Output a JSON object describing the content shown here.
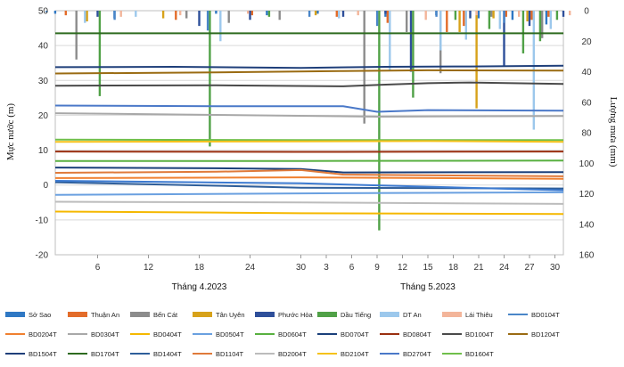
{
  "chart_data": {
    "type": "line",
    "title": "",
    "ylabel_left": "Mực nước (m)",
    "ylabel_right": "Lượng mưa (mm)",
    "ylim_left": [
      -20,
      50
    ],
    "yticks_left": [
      50,
      40,
      30,
      20,
      10,
      0,
      -10,
      -20
    ],
    "ylim_right_inverted": [
      0,
      160
    ],
    "yticks_right": [
      0,
      20,
      40,
      60,
      80,
      100,
      120,
      140,
      160
    ],
    "x_tick_labels": [
      "6",
      "12",
      "18",
      "24",
      "30",
      "3",
      "6",
      "9",
      "12",
      "15",
      "18",
      "21",
      "24",
      "27",
      "30"
    ],
    "x_tick_days": [
      6,
      12,
      18,
      24,
      30,
      33,
      36,
      39,
      42,
      45,
      48,
      51,
      54,
      57,
      60
    ],
    "x_range_days": [
      1,
      61
    ],
    "month_labels": [
      {
        "label": "Tháng 4.2023",
        "day": 18
      },
      {
        "label": "Tháng 5.2023",
        "day": 45
      }
    ],
    "legend_entries": [
      "Sở Sao",
      "Thuận An",
      "Bến Cát",
      "Tân Uyên",
      "Phước Hòa",
      "Dầu Tiếng",
      "DT An",
      "Lái Thiêu",
      "BD0104T",
      "BD0204T",
      "BD0304T",
      "BD0404T",
      "BD0504T",
      "BD0604T",
      "BD0704T",
      "BD0804T",
      "BD1004T",
      "BD1204T",
      "BD1504T",
      "BD1704T",
      "BD1404T",
      "BD1104T",
      "BD2004T",
      "BD2104T",
      "BD2704T",
      "BD1604T"
    ],
    "rain_series": [
      {
        "name": "Sở Sao",
        "color": "#2f78c4",
        "values": [
          [
            1,
            1
          ],
          [
            2,
            2
          ],
          [
            9,
            5
          ],
          [
            21,
            2
          ],
          [
            27,
            3
          ],
          [
            33,
            2
          ],
          [
            41,
            4
          ],
          [
            47,
            3
          ],
          [
            52,
            5
          ],
          [
            56,
            6
          ],
          [
            60,
            9
          ]
        ]
      },
      {
        "name": "Thuận An",
        "color": "#e36c2a",
        "values": [
          [
            3,
            3
          ],
          [
            16,
            6
          ],
          [
            25,
            3
          ],
          [
            35,
            4
          ],
          [
            41,
            8
          ],
          [
            48,
            14
          ],
          [
            50,
            10
          ],
          [
            55,
            4
          ],
          [
            58,
            6
          ],
          [
            60,
            4
          ]
        ]
      },
      {
        "name": "Bến Cát",
        "color": "#8c8c8c",
        "values": [
          [
            4,
            32
          ],
          [
            17,
            5
          ],
          [
            22,
            8
          ],
          [
            28,
            6
          ],
          [
            38,
            74
          ],
          [
            43,
            14
          ],
          [
            47,
            41
          ],
          [
            53,
            4
          ],
          [
            58,
            6
          ],
          [
            59,
            18
          ]
        ]
      },
      {
        "name": "Tân Uyên",
        "color": "#d7a21a",
        "values": [
          [
            5,
            7
          ],
          [
            14,
            5
          ],
          [
            32,
            3
          ],
          [
            49,
            14
          ],
          [
            51,
            64
          ],
          [
            53,
            5
          ],
          [
            57,
            7
          ]
        ]
      },
      {
        "name": "Phước Hòa",
        "color": "#2e4f9a",
        "values": [
          [
            6,
            4
          ],
          [
            18,
            10
          ],
          [
            24,
            6
          ],
          [
            35,
            4
          ],
          [
            40,
            2
          ],
          [
            43,
            40
          ],
          [
            50,
            5
          ],
          [
            54,
            36
          ],
          [
            57,
            10
          ],
          [
            61,
            4
          ]
        ]
      },
      {
        "name": "Dầu Tiếng",
        "color": "#50a147",
        "values": [
          [
            6,
            56
          ],
          [
            19,
            89
          ],
          [
            26,
            4
          ],
          [
            39,
            144
          ],
          [
            43,
            57
          ],
          [
            48,
            6
          ],
          [
            52,
            12
          ],
          [
            56,
            28
          ],
          [
            58,
            20
          ],
          [
            60,
            6
          ]
        ]
      },
      {
        "name": "DT An",
        "color": "#9cc8ec",
        "values": [
          [
            4,
            8
          ],
          [
            10,
            4
          ],
          [
            20,
            20
          ],
          [
            34,
            5
          ],
          [
            40,
            39
          ],
          [
            46,
            26
          ],
          [
            49,
            19
          ],
          [
            53,
            12
          ],
          [
            57,
            78
          ],
          [
            59,
            12
          ]
        ]
      },
      {
        "name": "Lái Thiêu",
        "color": "#f3b59a",
        "values": [
          [
            8,
            4
          ],
          [
            15,
            3
          ],
          [
            23,
            2
          ],
          [
            36,
            3
          ],
          [
            44,
            6
          ],
          [
            50,
            3
          ],
          [
            55,
            4
          ],
          [
            61,
            3
          ]
        ]
      },
      {
        "name": "BD0104T",
        "color": "#4a86c8",
        "values": [
          [
            7,
            6
          ],
          [
            18,
            13
          ],
          [
            30,
            4
          ],
          [
            38,
            10
          ],
          [
            45,
            4
          ],
          [
            53,
            8
          ]
        ]
      }
    ],
    "series": [
      {
        "name": "BD1704T",
        "color": "#2e6b1f",
        "x": [
          1,
          61
        ],
        "y": [
          43.5,
          43.5
        ]
      },
      {
        "name": "BD1504T",
        "color": "#1f3f7a",
        "x": [
          1,
          15,
          30,
          40,
          50,
          61
        ],
        "y": [
          33.8,
          33.9,
          33.6,
          33.9,
          34.0,
          34.2
        ]
      },
      {
        "name": "BD1204T",
        "color": "#9a6b12",
        "x": [
          1,
          20,
          35,
          45,
          61
        ],
        "y": [
          32.0,
          32.3,
          32.7,
          32.9,
          32.8
        ]
      },
      {
        "name": "BD1004T",
        "color": "#4a4a4a",
        "x": [
          1,
          20,
          35,
          40,
          45,
          50,
          61
        ],
        "y": [
          28.5,
          28.6,
          28.3,
          28.8,
          29.2,
          29.4,
          29.0
        ]
      },
      {
        "name": "BD2704T",
        "color": "#4a78c8",
        "x": [
          1,
          20,
          35,
          39,
          45,
          61
        ],
        "y": [
          22.8,
          22.6,
          22.6,
          21.0,
          21.5,
          21.3
        ]
      },
      {
        "name": "BD0304T",
        "color": "#a8a8a8",
        "x": [
          1,
          20,
          39,
          61
        ],
        "y": [
          20.6,
          20.1,
          19.6,
          19.8
        ]
      },
      {
        "name": "BD1604T",
        "color": "#6fbf4a",
        "x": [
          1,
          30,
          61
        ],
        "y": [
          13.0,
          12.9,
          12.9
        ]
      },
      {
        "name": "BD2104T",
        "color": "#f5c21b",
        "x": [
          1,
          30,
          45,
          61
        ],
        "y": [
          12.4,
          12.5,
          12.6,
          12.4
        ]
      },
      {
        "name": "BD0804T",
        "color": "#9a2f10",
        "x": [
          1,
          30,
          61
        ],
        "y": [
          9.6,
          9.5,
          9.6
        ]
      },
      {
        "name": "BD0604T",
        "color": "#58b040",
        "x": [
          1,
          30,
          61
        ],
        "y": [
          6.9,
          6.9,
          7.0
        ]
      },
      {
        "name": "BD0704T",
        "color": "#1a3f7a",
        "x": [
          1,
          20,
          30,
          35,
          61
        ],
        "y": [
          5.0,
          4.8,
          4.6,
          3.6,
          3.7
        ]
      },
      {
        "name": "BD1104T",
        "color": "#e07a3a",
        "x": [
          1,
          20,
          30,
          35,
          61
        ],
        "y": [
          3.5,
          3.8,
          4.3,
          3.0,
          2.5
        ]
      },
      {
        "name": "BD1404T",
        "color": "#2e5e9a",
        "x": [
          1,
          20,
          30,
          61
        ],
        "y": [
          0.8,
          -0.2,
          -0.8,
          -1.0
        ]
      },
      {
        "name": "BD0204T",
        "color": "#f08030",
        "x": [
          1,
          30,
          61
        ],
        "y": [
          2.0,
          2.2,
          1.8
        ]
      },
      {
        "name": "BD0504T",
        "color": "#6aa0e0",
        "x": [
          1,
          30,
          61
        ],
        "y": [
          -2.8,
          -2.4,
          -2.1
        ]
      },
      {
        "name": "BD0104T",
        "color": "#3c7ad0",
        "x": [
          1,
          30,
          61
        ],
        "y": [
          1.2,
          0.5,
          -1.5
        ]
      },
      {
        "name": "BD2004T",
        "color": "#bcbcbc",
        "x": [
          1,
          30,
          61
        ],
        "y": [
          -4.8,
          -5.0,
          -5.4
        ]
      },
      {
        "name": "BD0404T",
        "color": "#f5b800",
        "x": [
          1,
          20,
          30,
          61
        ],
        "y": [
          -7.6,
          -7.9,
          -8.1,
          -8.3
        ]
      }
    ]
  }
}
